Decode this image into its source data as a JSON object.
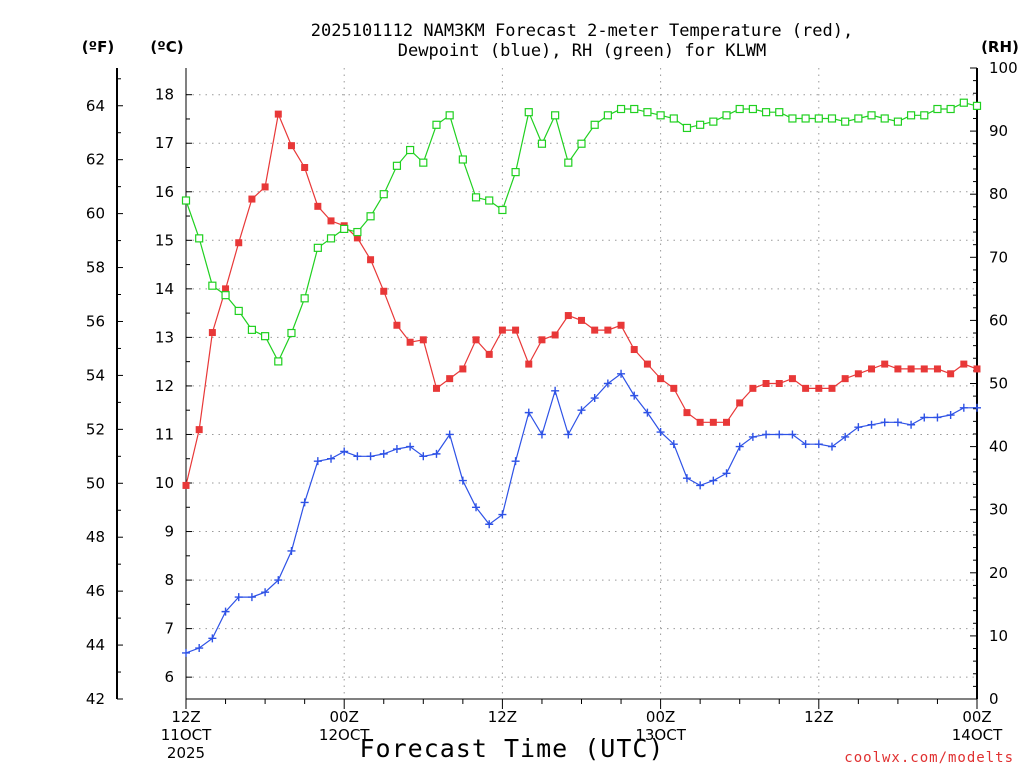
{
  "chart_data": {
    "type": "line",
    "title_lines": [
      "2025101112 NAM3KM Forecast 2-meter Temperature (red),",
      "Dewpoint (blue), RH (green) for KLWM"
    ],
    "xlabel": "Forecast Time (UTC)",
    "credit": "coolwx.com/modelts",
    "units": {
      "fahrenheit": "(ºF)",
      "celsius": "(ºC)",
      "rh": "(RH)"
    },
    "x_ticks": [
      {
        "hour": 0,
        "lines": [
          "12Z",
          "11OCT",
          "2025"
        ]
      },
      {
        "hour": 12,
        "lines": [
          "00Z",
          "12OCT"
        ]
      },
      {
        "hour": 24,
        "lines": [
          "12Z"
        ]
      },
      {
        "hour": 36,
        "lines": [
          "00Z",
          "13OCT"
        ]
      },
      {
        "hour": 48,
        "lines": [
          "12Z"
        ]
      },
      {
        "hour": 60,
        "lines": [
          "00Z",
          "14OCT"
        ]
      }
    ],
    "xlim": [
      0,
      60
    ],
    "ylim_celsius": [
      5.55,
      18.55
    ],
    "ylim_fahrenheit": [
      42,
      65.4
    ],
    "ylim_rh": [
      0,
      100
    ],
    "celsius_ticks": [
      6,
      7,
      8,
      9,
      10,
      11,
      12,
      13,
      14,
      15,
      16,
      17,
      18
    ],
    "fahrenheit_ticks": [
      42,
      44,
      46,
      48,
      50,
      52,
      54,
      56,
      58,
      60,
      62,
      64
    ],
    "rh_ticks": [
      0,
      10,
      20,
      30,
      40,
      50,
      60,
      70,
      80,
      90,
      100
    ],
    "grid": true,
    "series": [
      {
        "name": "Temperature",
        "unit": "C",
        "color": "#e83838",
        "marker": "filled-square",
        "values": [
          9.95,
          11.1,
          13.1,
          14.0,
          14.95,
          15.85,
          16.1,
          17.6,
          16.95,
          16.5,
          15.7,
          15.4,
          15.3,
          15.05,
          14.6,
          13.95,
          13.25,
          12.9,
          12.95,
          11.95,
          12.15,
          12.35,
          12.95,
          12.65,
          13.15,
          13.15,
          12.45,
          12.95,
          13.05,
          13.45,
          13.35,
          13.15,
          13.15,
          13.25,
          12.75,
          12.45,
          12.15,
          11.95,
          11.45,
          11.25,
          11.25,
          11.25,
          11.65,
          11.95,
          12.05,
          12.05,
          12.15,
          11.95,
          11.95,
          11.95,
          12.15,
          12.25,
          12.35,
          12.45,
          12.35,
          12.35,
          12.35,
          12.35,
          12.25,
          12.45,
          12.35
        ]
      },
      {
        "name": "Dewpoint",
        "unit": "C",
        "color": "#2e52e6",
        "marker": "plus",
        "values": [
          6.5,
          6.6,
          6.8,
          7.35,
          7.65,
          7.65,
          7.75,
          8.0,
          8.6,
          9.6,
          10.45,
          10.5,
          10.65,
          10.55,
          10.55,
          10.6,
          10.7,
          10.75,
          10.55,
          10.6,
          11.0,
          10.05,
          9.5,
          9.15,
          9.35,
          10.45,
          11.45,
          11.0,
          11.9,
          11.0,
          11.5,
          11.75,
          12.05,
          12.25,
          11.8,
          11.45,
          11.05,
          10.8,
          10.1,
          9.95,
          10.05,
          10.2,
          10.75,
          10.95,
          11.0,
          11.0,
          11.0,
          10.8,
          10.8,
          10.75,
          10.95,
          11.15,
          11.2,
          11.25,
          11.25,
          11.2,
          11.35,
          11.35,
          11.4,
          11.55,
          11.55
        ]
      },
      {
        "name": "RH",
        "unit": "%",
        "color": "#20d020",
        "marker": "open-square",
        "values": [
          79,
          73,
          65.5,
          64,
          61.5,
          58.5,
          57.5,
          53.5,
          58,
          63.5,
          71.5,
          73,
          74.5,
          74,
          76.5,
          80,
          84.5,
          87,
          85,
          91,
          92.5,
          85.5,
          79.5,
          79,
          77.5,
          83.5,
          93,
          88,
          92.5,
          85,
          88,
          91,
          92.5,
          93.5,
          93.5,
          93,
          92.5,
          92,
          90.5,
          91,
          91.5,
          92.5,
          93.5,
          93.5,
          93,
          93,
          92,
          92,
          92,
          92,
          91.5,
          92,
          92.5,
          92,
          91.5,
          92.5,
          92.5,
          93.5,
          93.5,
          94.5,
          94
        ]
      }
    ]
  }
}
